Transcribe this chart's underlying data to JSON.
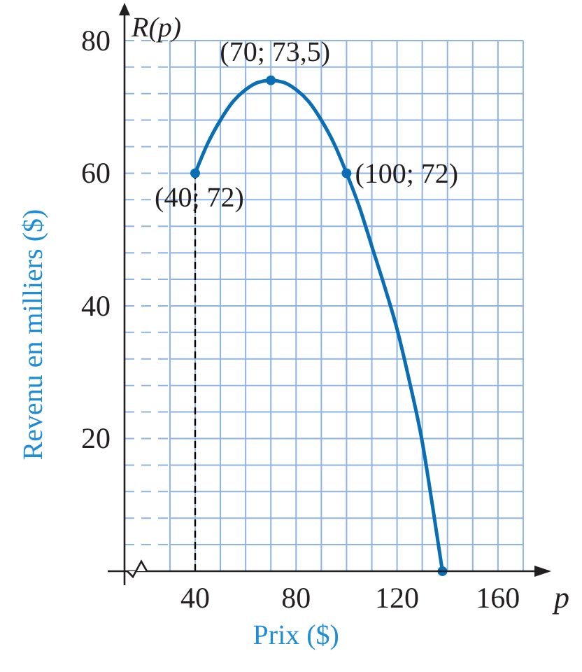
{
  "chart_data": {
    "type": "line",
    "xlabel": "Prix ($)",
    "ylabel": "Revenu en milliers ($)",
    "xlim": [
      12,
      180
    ],
    "ylim": [
      0,
      84
    ],
    "xticks": [
      40,
      80,
      120,
      160
    ],
    "yticks": [
      20,
      40,
      60,
      80
    ],
    "grid": true,
    "series": [
      {
        "color": "#0a6eb4",
        "marker": "none",
        "x": [
          40,
          45,
          50,
          55,
          60,
          65,
          70,
          75,
          80,
          85,
          90,
          95,
          100,
          105,
          110,
          115,
          120,
          125,
          130,
          134,
          138
        ],
        "values": [
          60,
          64.5,
          68,
          70.8,
          72.6,
          73.7,
          74,
          73.7,
          72.6,
          70.8,
          68,
          64.5,
          60,
          55,
          49,
          43,
          36.5,
          28.5,
          19.5,
          10,
          0
        ]
      },
      {
        "type": "scatter",
        "color": "#0a6eb4",
        "marker": "circle",
        "x": [
          40,
          70,
          100,
          138
        ],
        "values": [
          60,
          74,
          60,
          0
        ]
      }
    ],
    "ref_lines": [
      {
        "axis": "x",
        "value": 40,
        "line_style": "dashed",
        "color": "#000000"
      }
    ],
    "annotations": [
      {
        "text": "(40; 72)",
        "x": 40,
        "y": 60
      },
      {
        "text": "(70; 73,5)",
        "x": 70,
        "y": 74
      },
      {
        "text": "(100; 72)",
        "x": 100,
        "y": 60
      },
      "R(p)",
      "p"
    ]
  }
}
